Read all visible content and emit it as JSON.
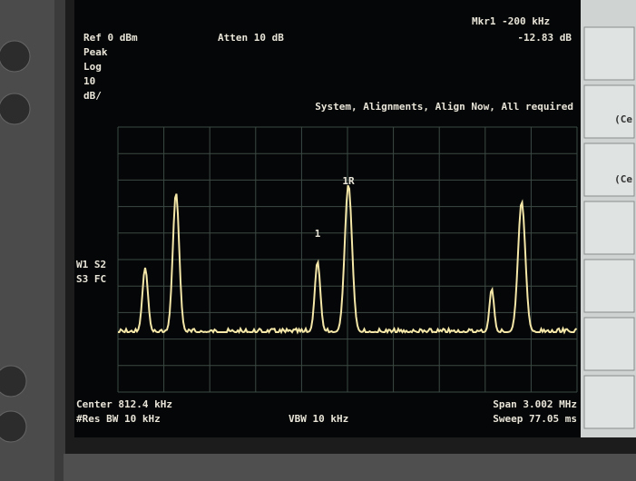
{
  "header": {
    "ref": "Ref 0 dBm",
    "atten": "Atten 10 dB",
    "marker": "Mkr1 -200 kHz",
    "marker_value": "-12.83 dB"
  },
  "scale": {
    "mode": "Peak",
    "type": "Log",
    "div": "10",
    "unit": "dB/"
  },
  "message": "System, Alignments, Align Now, All required",
  "trace_info": {
    "line1": "W1 S2",
    "line2": "S3 FC"
  },
  "markers": [
    "1R",
    "1"
  ],
  "footer": {
    "center": "Center 812.4 kHz",
    "rbw": "#Res BW 10 kHz",
    "vbw": "VBW 10 kHz",
    "span": "Span 3.002 MHz",
    "sweep": "Sweep 77.05 ms"
  },
  "softkeys": [
    "(Ce",
    "(Ce"
  ]
}
